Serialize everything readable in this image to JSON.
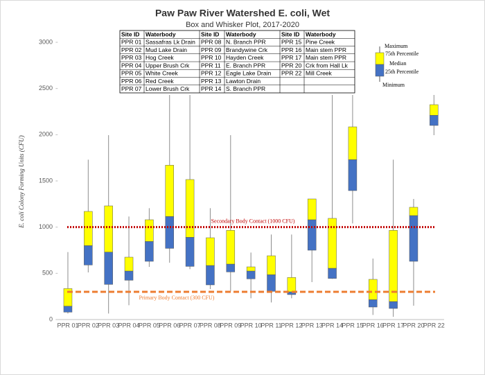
{
  "chart_data": {
    "type": "box",
    "title": "Paw Paw River Watershed E. coli, Wet",
    "subtitle": "Box and Whisker Plot, 2017-2020",
    "y_label": "E. coli Colony Forming Units (CFU)",
    "categories": [
      "PPR 01",
      "PPR 02",
      "PPR 03",
      "PPR 04",
      "PPR 05",
      "PPR 06",
      "PPR 07",
      "PPR 08",
      "PPR 09",
      "PPR 10",
      "PPR 11",
      "PPR 12",
      "PPR 13",
      "PPR 14",
      "PPR 15",
      "PPR 16",
      "PPR 17",
      "PPR 20",
      "PPR 22"
    ],
    "boxes": [
      {
        "min": 65,
        "q1": 80,
        "median": 145,
        "q3": 335,
        "max": 730
      },
      {
        "min": 510,
        "q1": 590,
        "median": 800,
        "q3": 1170,
        "max": 1730
      },
      {
        "min": 65,
        "q1": 380,
        "median": 730,
        "q3": 1230,
        "max": 1995
      },
      {
        "min": 155,
        "q1": 425,
        "median": 525,
        "q3": 675,
        "max": 1115
      },
      {
        "min": 570,
        "q1": 630,
        "median": 845,
        "q3": 1080,
        "max": 1205
      },
      {
        "min": 615,
        "q1": 770,
        "median": 1115,
        "q3": 1670,
        "max": 2430
      },
      {
        "min": 545,
        "q1": 575,
        "median": 890,
        "q3": 1515,
        "max": 2430
      },
      {
        "min": 330,
        "q1": 375,
        "median": 585,
        "q3": 885,
        "max": 1205
      },
      {
        "min": 305,
        "q1": 515,
        "median": 600,
        "q3": 965,
        "max": 1995
      },
      {
        "min": 230,
        "q1": 440,
        "median": 525,
        "q3": 570,
        "max": 725
      },
      {
        "min": 185,
        "q1": 305,
        "median": 485,
        "q3": 690,
        "max": 920
      },
      {
        "min": 230,
        "q1": 270,
        "median": 300,
        "q3": 455,
        "max": 920
      },
      {
        "min": 405,
        "q1": 750,
        "median": 1080,
        "q3": 1305,
        "max": 1305
      },
      {
        "min": 440,
        "q1": 445,
        "median": 555,
        "q3": 1095,
        "max": 2430
      },
      {
        "min": 1040,
        "q1": 1395,
        "median": 1730,
        "q3": 2085,
        "max": 2430
      },
      {
        "min": 50,
        "q1": 135,
        "median": 215,
        "q3": 435,
        "max": 660
      },
      {
        "min": 30,
        "q1": 120,
        "median": 195,
        "q3": 965,
        "max": 1730
      },
      {
        "min": 150,
        "q1": 630,
        "median": 1125,
        "q3": 1215,
        "max": 1305
      },
      {
        "min": 1995,
        "q1": 2100,
        "median": 2210,
        "q3": 2325,
        "max": 2430
      }
    ],
    "upper_color": "#ffff00",
    "lower_color": "#4472c4",
    "ylim": [
      0,
      3000
    ],
    "yticks": [
      0,
      500,
      1000,
      1500,
      2000,
      2500,
      3000
    ],
    "reference_lines": [
      {
        "value": 1000,
        "label": "Secondary Body Contact (1000 CFU)",
        "color": "#c00000",
        "style": "dotted"
      },
      {
        "value": 300,
        "label": "Primary Body Contact (300 CFU)",
        "color": "#ed7d31",
        "style": "dashed"
      }
    ],
    "legend": [
      "Maximum",
      "75th Percentile",
      "Median",
      "25th Percentile",
      "Minimum"
    ]
  },
  "table": {
    "header": [
      "Site ID",
      "Waterbody",
      "Site ID",
      "Waterbody",
      "Site ID",
      "Waterbody"
    ],
    "rows": [
      [
        "PPR 01",
        "Sassafras Lk Drain",
        "PPR 08",
        "N. Branch PPR",
        "PPR 15",
        "Pine Creek"
      ],
      [
        "PPR 02",
        "Mud Lake Drain",
        "PPR 09",
        "Brandywine Crk",
        "PPR 16",
        "Main stem PPR"
      ],
      [
        "PPR 03",
        "Hog Creek",
        "PPR 10",
        "Hayden Creek",
        "PPR 17",
        "Main stem PPR"
      ],
      [
        "PPR 04",
        "Upper Brush Crk",
        "PPR 11",
        "E. Branch PPR",
        "PPR 20",
        "Crk from Hall Lk"
      ],
      [
        "PPR 05",
        "White Creek",
        "PPR 12",
        "Eagle Lake Drain",
        "PPR 22",
        "Mill Creek"
      ],
      [
        "PPR 06",
        "Red Creek",
        "PPR 13",
        "Lawton Drain"
      ],
      [
        "PPR 07",
        "Lower Brush Crk",
        "PPR 14",
        "S. Branch PPR"
      ]
    ]
  }
}
